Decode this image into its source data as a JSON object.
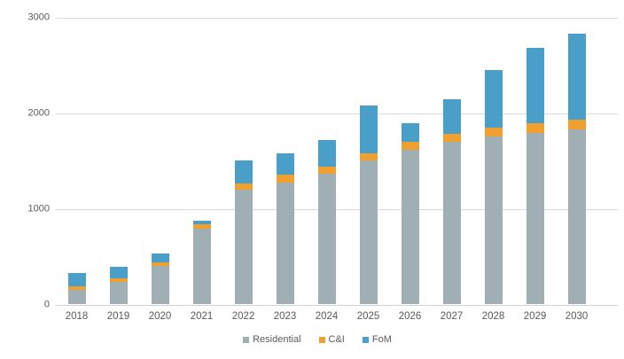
{
  "chart_data": {
    "type": "bar",
    "stacked": true,
    "title": "",
    "xlabel": "",
    "ylabel": "",
    "categories": [
      "2018",
      "2019",
      "2020",
      "2021",
      "2022",
      "2023",
      "2024",
      "2025",
      "2026",
      "2027",
      "2028",
      "2029",
      "2030"
    ],
    "series": [
      {
        "name": "Residential",
        "color": "#9fafb4",
        "values": [
          150,
          230,
          400,
          790,
          1190,
          1270,
          1360,
          1500,
          1610,
          1690,
          1750,
          1790,
          1820
        ]
      },
      {
        "name": "C&I",
        "color": "#f0a02f",
        "values": [
          35,
          40,
          35,
          45,
          70,
          85,
          75,
          70,
          85,
          90,
          90,
          100,
          105
        ]
      },
      {
        "name": "FoM",
        "color": "#4a9fc9",
        "values": [
          140,
          115,
          95,
          40,
          240,
          215,
          275,
          500,
          195,
          360,
          600,
          790,
          895
        ]
      }
    ],
    "totals": [
      325,
      385,
      530,
      875,
      1500,
      1570,
      1710,
      2070,
      1890,
      2140,
      2440,
      2680,
      2820
    ],
    "y_axis": {
      "ticks": [
        0,
        1000,
        2000,
        3000
      ],
      "ylim": [
        0,
        3000
      ]
    },
    "grid": true,
    "legend_position": "bottom"
  },
  "colors": {
    "background": "#ffffff",
    "gridline": "#d9d9d9",
    "axis_text": "#595959"
  }
}
